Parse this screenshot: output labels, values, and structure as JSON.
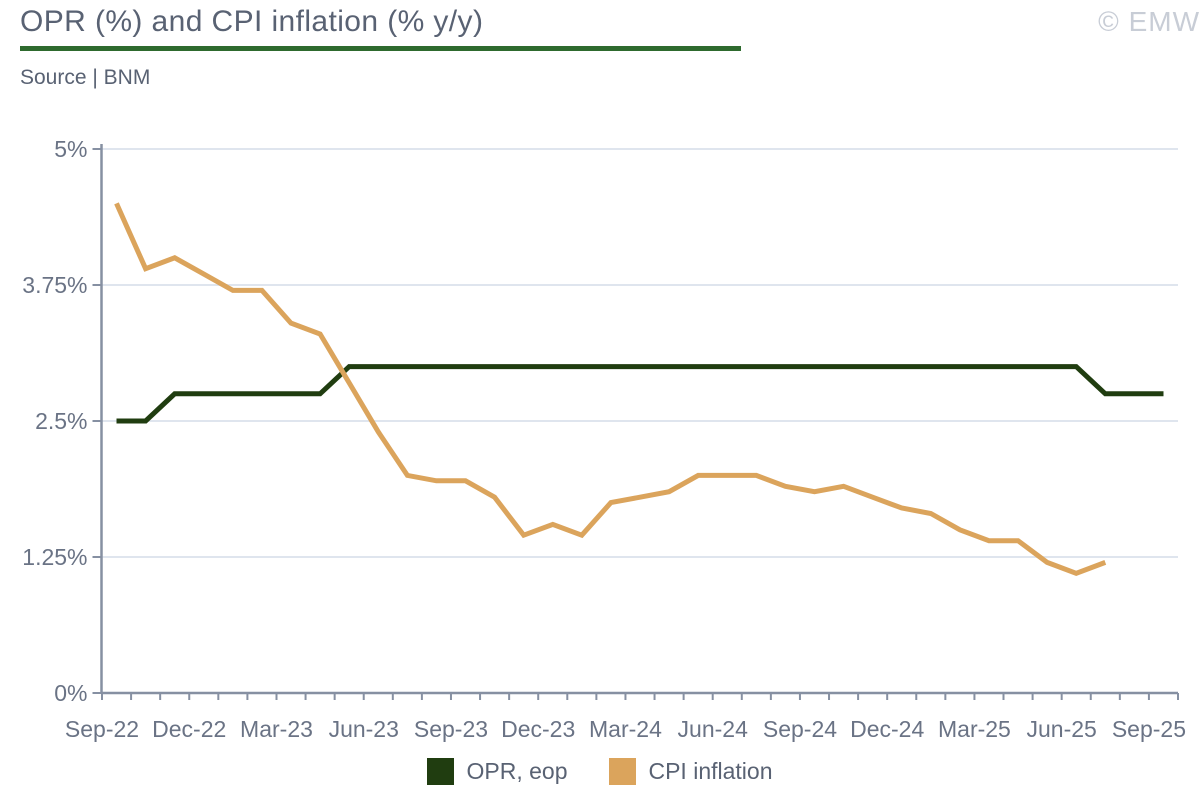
{
  "header": {
    "title": "OPR (%) and CPI inflation (% y/y)",
    "source": "Source | BNM",
    "watermark": "© EMW"
  },
  "legend": {
    "items": [
      {
        "label": "OPR, eop",
        "color": "#203d10"
      },
      {
        "label": "CPI inflation",
        "color": "#dba45c"
      }
    ]
  },
  "colors": {
    "title_text": "#596273",
    "tick_label_text": "#6a7385",
    "axis_line": "#8690a2",
    "gridline": "#dfe5ee",
    "title_rule_green": "#2e6a2e",
    "opr_line": "#203d10",
    "cpi_line": "#dba45c",
    "watermark": "#c8cdd6"
  },
  "chart_data": {
    "type": "line",
    "title": "OPR (%) and CPI inflation (% y/y)",
    "source": "Source | BNM",
    "x": [
      "Sep-22",
      "Oct-22",
      "Nov-22",
      "Dec-22",
      "Jan-23",
      "Feb-23",
      "Mar-23",
      "Apr-23",
      "May-23",
      "Jun-23",
      "Jul-23",
      "Aug-23",
      "Sep-23",
      "Oct-23",
      "Nov-23",
      "Dec-23",
      "Jan-24",
      "Feb-24",
      "Mar-24",
      "Apr-24",
      "May-24",
      "Jun-24",
      "Jul-24",
      "Aug-24",
      "Sep-24",
      "Oct-24",
      "Nov-24",
      "Dec-24",
      "Jan-25",
      "Feb-25",
      "Mar-25",
      "Apr-25",
      "May-25",
      "Jun-25",
      "Jul-25",
      "Aug-25",
      "Sep-25"
    ],
    "x_major_label_every": 3,
    "x_major_labels": [
      "Sep-22",
      "Dec-22",
      "Mar-23",
      "Jun-23",
      "Sep-23",
      "Dec-23",
      "Mar-24",
      "Jun-24",
      "Sep-24",
      "Dec-24",
      "Mar-25",
      "Jun-25",
      "Sep-25"
    ],
    "series": [
      {
        "name": "OPR, eop",
        "color": "#203d10",
        "values": [
          2.5,
          2.5,
          2.75,
          2.75,
          2.75,
          2.75,
          2.75,
          2.75,
          3.0,
          3.0,
          3.0,
          3.0,
          3.0,
          3.0,
          3.0,
          3.0,
          3.0,
          3.0,
          3.0,
          3.0,
          3.0,
          3.0,
          3.0,
          3.0,
          3.0,
          3.0,
          3.0,
          3.0,
          3.0,
          3.0,
          3.0,
          3.0,
          3.0,
          3.0,
          2.75,
          2.75,
          2.75
        ]
      },
      {
        "name": "CPI inflation",
        "color": "#dba45c",
        "values": [
          4.5,
          3.9,
          4.0,
          3.85,
          3.7,
          3.7,
          3.4,
          3.3,
          2.85,
          2.4,
          2.0,
          1.95,
          1.95,
          1.8,
          1.45,
          1.55,
          1.45,
          1.75,
          1.8,
          1.85,
          2.0,
          2.0,
          2.0,
          1.9,
          1.85,
          1.9,
          1.8,
          1.7,
          1.65,
          1.5,
          1.4,
          1.4,
          1.2,
          1.1,
          1.2,
          null,
          null
        ]
      }
    ],
    "ylim": [
      0,
      5
    ],
    "y_ticks": [
      {
        "value": 0,
        "label": "0%"
      },
      {
        "value": 1.25,
        "label": "1.25%"
      },
      {
        "value": 2.5,
        "label": "2.5%"
      },
      {
        "value": 3.75,
        "label": "3.75%"
      },
      {
        "value": 5,
        "label": "5%"
      }
    ],
    "grid": "horizontal",
    "legend_position": "bottom"
  }
}
